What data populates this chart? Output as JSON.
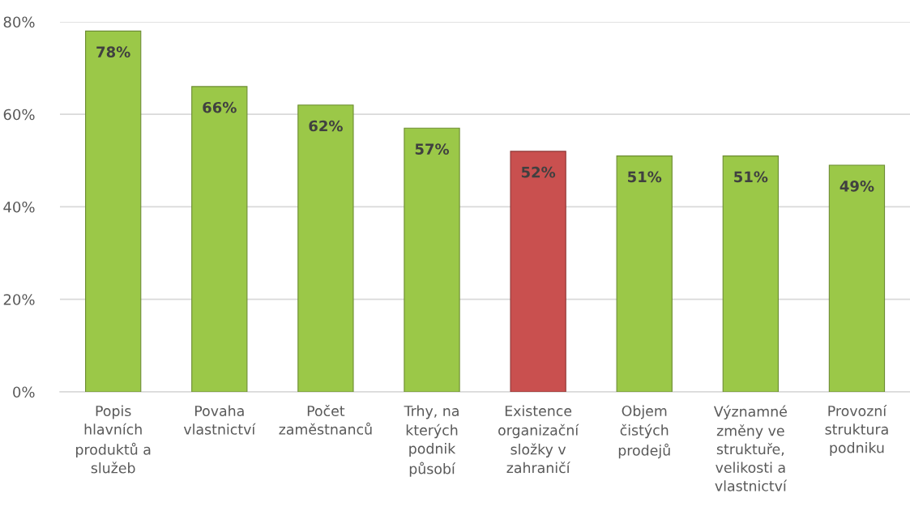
{
  "chart_data": {
    "type": "bar",
    "categories": [
      "Popis\nhlavních\nproduktů a\nslužeb",
      "Povaha\nvlastnictví",
      "Počet\nzaměstnanců",
      "Trhy, na\nkterých\npodnik\npůsobí",
      "Existence\norganizační\nsložky v\nzahraničí",
      "Objem\nčistých\nprodejů",
      "Významné\nzměny ve\nstruktuře,\nvelikosti a\nvlastnictví",
      "Provozní\nstruktura\npodniku"
    ],
    "values": [
      78,
      66,
      62,
      57,
      52,
      51,
      51,
      49
    ],
    "colors": [
      "#9bc848",
      "#9bc848",
      "#9bc848",
      "#9bc848",
      "#c9504f",
      "#9bc848",
      "#9bc848",
      "#9bc848"
    ],
    "value_labels": [
      "78%",
      "66%",
      "62%",
      "57%",
      "52%",
      "51%",
      "51%",
      "49%"
    ],
    "ylim": [
      0,
      80
    ],
    "yticks": [
      {
        "value": 0,
        "label": "0%"
      },
      {
        "value": 20,
        "label": "20%"
      },
      {
        "value": 40,
        "label": "40%"
      },
      {
        "value": 60,
        "label": "60%"
      },
      {
        "value": 80,
        "label": "80%"
      }
    ],
    "grid": "y",
    "legend": false
  }
}
